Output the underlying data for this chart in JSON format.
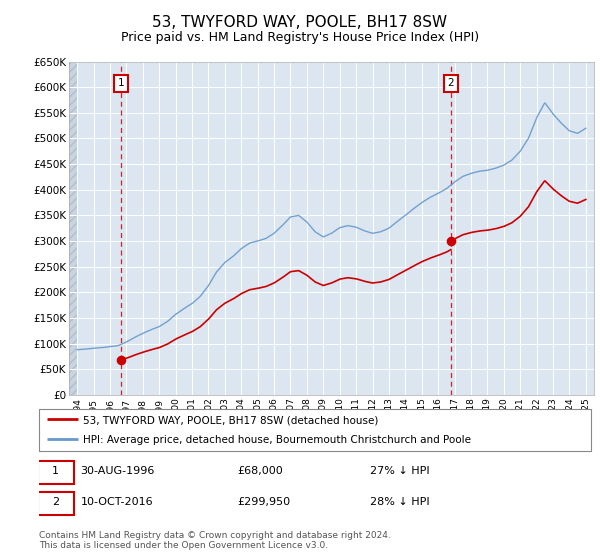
{
  "title": "53, TWYFORD WAY, POOLE, BH17 8SW",
  "subtitle": "Price paid vs. HM Land Registry's House Price Index (HPI)",
  "ylim": [
    0,
    650000
  ],
  "yticks": [
    0,
    50000,
    100000,
    150000,
    200000,
    250000,
    300000,
    350000,
    400000,
    450000,
    500000,
    550000,
    600000,
    650000
  ],
  "ytick_labels": [
    "£0",
    "£50K",
    "£100K",
    "£150K",
    "£200K",
    "£250K",
    "£300K",
    "£350K",
    "£400K",
    "£450K",
    "£500K",
    "£550K",
    "£600K",
    "£650K"
  ],
  "xlim_start": 1993.5,
  "xlim_end": 2025.5,
  "bg_color": "#dce6f1",
  "hatch_color": "#c8d4e0",
  "grid_color": "#ffffff",
  "sale1_date": 1996.66,
  "sale1_price": 68000,
  "sale1_label": "1",
  "sale2_date": 2016.78,
  "sale2_price": 299950,
  "sale2_label": "2",
  "legend_line1": "53, TWYFORD WAY, POOLE, BH17 8SW (detached house)",
  "legend_line2": "HPI: Average price, detached house, Bournemouth Christchurch and Poole",
  "footer": "Contains HM Land Registry data © Crown copyright and database right 2024.\nThis data is licensed under the Open Government Licence v3.0.",
  "hpi_color": "#6699cc",
  "price_color": "#cc0000",
  "vline_color": "#cc0000",
  "hpi_years": [
    1994,
    1994.5,
    1995,
    1995.5,
    1996,
    1996.5,
    1997,
    1997.5,
    1998,
    1998.5,
    1999,
    1999.5,
    2000,
    2000.5,
    2001,
    2001.5,
    2002,
    2002.5,
    2003,
    2003.5,
    2004,
    2004.5,
    2005,
    2005.5,
    2006,
    2006.5,
    2007,
    2007.5,
    2008,
    2008.5,
    2009,
    2009.5,
    2010,
    2010.5,
    2011,
    2011.5,
    2012,
    2012.5,
    2013,
    2013.5,
    2014,
    2014.5,
    2015,
    2015.5,
    2016,
    2016.5,
    2017,
    2017.5,
    2018,
    2018.5,
    2019,
    2019.5,
    2020,
    2020.5,
    2021,
    2021.5,
    2022,
    2022.5,
    2023,
    2023.5,
    2024,
    2024.5,
    2025
  ],
  "hpi_vals": [
    88000,
    89000,
    91000,
    92000,
    94000,
    96000,
    103000,
    112000,
    120000,
    127000,
    133000,
    143000,
    157000,
    168000,
    178000,
    192000,
    213000,
    240000,
    258000,
    270000,
    285000,
    296000,
    300000,
    305000,
    315000,
    330000,
    347000,
    350000,
    337000,
    318000,
    308000,
    315000,
    326000,
    330000,
    327000,
    320000,
    315000,
    318000,
    325000,
    338000,
    350000,
    363000,
    375000,
    385000,
    393000,
    402000,
    415000,
    426000,
    432000,
    436000,
    438000,
    442000,
    448000,
    458000,
    475000,
    500000,
    540000,
    570000,
    548000,
    530000,
    515000,
    510000,
    520000
  ]
}
